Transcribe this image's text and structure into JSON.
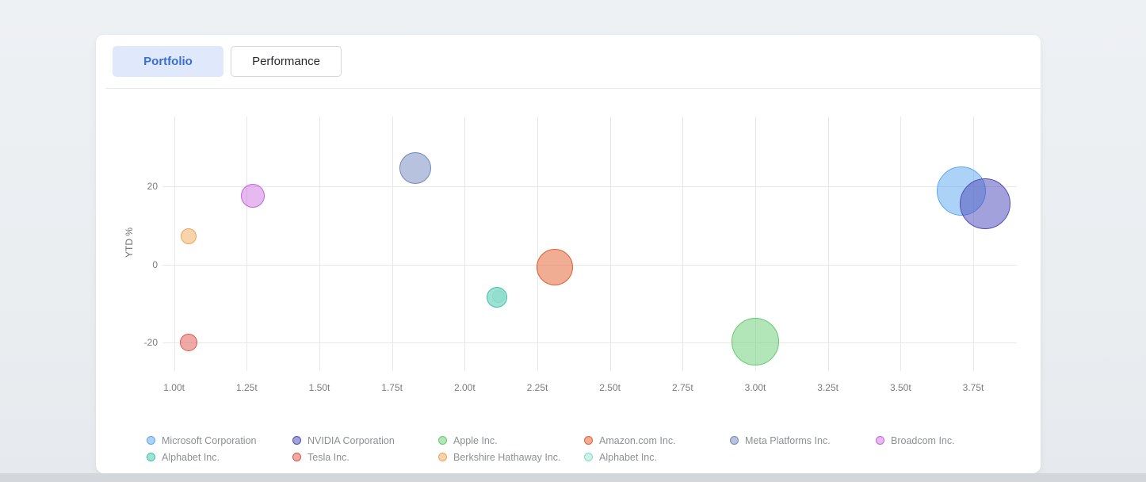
{
  "tabs": [
    {
      "label": "Portfolio",
      "active": true
    },
    {
      "label": "Performance",
      "active": false
    }
  ],
  "chart_data": {
    "type": "bubble",
    "xlabel": "",
    "ylabel": "YTD %",
    "xlim": [
      0.96,
      3.9
    ],
    "ylim": [
      -27.3,
      37.9
    ],
    "grid": "on",
    "legend_position": "bottom",
    "x_tick_suffix": "t",
    "x_ticks": [
      {
        "value": 1.0,
        "label": "1.00t"
      },
      {
        "value": 1.25,
        "label": "1.25t"
      },
      {
        "value": 1.5,
        "label": "1.50t"
      },
      {
        "value": 1.75,
        "label": "1.75t"
      },
      {
        "value": 2.0,
        "label": "2.00t"
      },
      {
        "value": 2.25,
        "label": "2.25t"
      },
      {
        "value": 2.5,
        "label": "2.50t"
      },
      {
        "value": 2.75,
        "label": "2.75t"
      },
      {
        "value": 3.0,
        "label": "3.00t"
      },
      {
        "value": 3.25,
        "label": "3.25t"
      },
      {
        "value": 3.5,
        "label": "3.50t"
      },
      {
        "value": 3.75,
        "label": "3.75t"
      }
    ],
    "y_ticks": [
      {
        "value": 20,
        "label": "20"
      },
      {
        "value": 0,
        "label": "0"
      },
      {
        "value": -20,
        "label": "-20"
      }
    ],
    "series": [
      {
        "name": "Microsoft Corporation",
        "x": 3.71,
        "y": 18.8,
        "r": 31,
        "border": "#5aa7ef",
        "fill": "rgba(90,167,239,0.5)"
      },
      {
        "name": "NVIDIA Corporation",
        "x": 3.79,
        "y": 15.6,
        "r": 32,
        "border": "#514fb8",
        "fill": "rgba(85,83,192,0.55)"
      },
      {
        "name": "Apple Inc.",
        "x": 3.0,
        "y": -19.8,
        "r": 30,
        "border": "#66cc70",
        "fill": "rgba(102,204,112,0.5)"
      },
      {
        "name": "Amazon.com Inc.",
        "x": 2.31,
        "y": -0.7,
        "r": 23,
        "border": "#dd6437",
        "fill": "rgba(230,106,60,0.55)"
      },
      {
        "name": "Meta Platforms Inc.",
        "x": 1.83,
        "y": 24.6,
        "r": 20,
        "border": "#7489b8",
        "fill": "rgba(110,134,190,0.5)"
      },
      {
        "name": "Broadcom Inc.",
        "x": 1.27,
        "y": 17.6,
        "r": 15,
        "border": "#c365e0",
        "fill": "rgba(200,100,225,0.45)"
      },
      {
        "name": "Alphabet Inc.",
        "x": 2.11,
        "y": -8.4,
        "r": 13,
        "border": "#3fc3a8",
        "fill": "rgba(64,196,168,0.5)"
      },
      {
        "name": "Tesla Inc.",
        "x": 1.05,
        "y": -20.0,
        "r": 11,
        "border": "#dc554b",
        "fill": "rgba(225,85,75,0.5)"
      },
      {
        "name": "Berkshire Hathaway Inc.",
        "x": 1.05,
        "y": 7.3,
        "r": 10,
        "border": "#eda558",
        "fill": "rgba(240,170,90,0.5)"
      },
      {
        "name": "Alphabet Inc.",
        "x": 2.115,
        "y": -8.2,
        "r": 8,
        "border": "#82dcc8",
        "fill": "rgba(130,220,200,0.4)"
      }
    ]
  },
  "colors": {
    "card_bg": "#ffffff",
    "active_tab_bg": "#dfe9fb",
    "active_tab_text": "#3a6ed0",
    "gridline": "#e8e8e8",
    "tick_text": "#7c7c7c",
    "legend_text": "#8c9094",
    "bottom_bar": "#d3d6da"
  }
}
